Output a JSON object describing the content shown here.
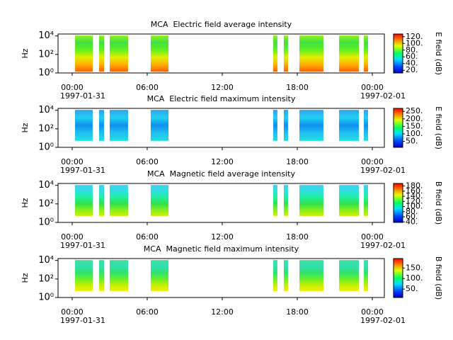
{
  "chart_data": [
    {
      "type": "spectrogram",
      "title": "MCA  Electric field average intensity",
      "ylabel": "Hz",
      "colorbar_label": "E field (dB)",
      "xlim": [
        -1.13,
        24.96
      ],
      "ylim": [
        1,
        16000
      ],
      "log_y": true,
      "xticks": [
        {
          "value": 0,
          "label": "00:00"
        },
        {
          "value": 6,
          "label": "06:00"
        },
        {
          "value": 12,
          "label": "12:00"
        },
        {
          "value": 18,
          "label": "18:00"
        },
        {
          "value": 24,
          "label": "00:00"
        }
      ],
      "xtick_dates": [
        {
          "value": 0,
          "label": "1997-01-31"
        },
        {
          "value": 24,
          "label": "1997-02-01"
        }
      ],
      "yticks": [
        {
          "value": 1,
          "label": "10⁰"
        },
        {
          "value": 100,
          "label": "10²"
        },
        {
          "value": 10000,
          "label": "10⁴"
        }
      ],
      "intervals": [
        [
          0.23,
          1.64
        ],
        [
          2.15,
          2.55
        ],
        [
          3.0,
          4.47
        ],
        [
          6.28,
          7.7
        ],
        [
          16.07,
          16.41
        ],
        [
          16.92,
          17.26
        ],
        [
          18.17,
          20.09
        ],
        [
          21.34,
          22.92
        ],
        [
          23.32,
          23.66
        ]
      ],
      "frequency_range": [
        1.4,
        11000
      ],
      "gradient": [
        "#ff6000",
        "#ffb000",
        "#e0f000",
        "#60f020",
        "#40e040",
        "#90f020"
      ],
      "clim": [
        12,
        128
      ],
      "cticks": [
        {
          "value": 20,
          "label": "20."
        },
        {
          "value": 40,
          "label": "40."
        },
        {
          "value": 60,
          "label": "60."
        },
        {
          "value": 80,
          "label": "80."
        },
        {
          "value": 100,
          "label": "100."
        },
        {
          "value": 120,
          "label": "120."
        }
      ]
    },
    {
      "type": "spectrogram",
      "title": "MCA  Electric field maximum intensity",
      "ylabel": "Hz",
      "colorbar_label": "E field (dB)",
      "xlim": [
        -1.13,
        24.96
      ],
      "ylim": [
        1,
        16000
      ],
      "log_y": true,
      "xticks": [
        {
          "value": 0,
          "label": "00:00"
        },
        {
          "value": 6,
          "label": "06:00"
        },
        {
          "value": 12,
          "label": "12:00"
        },
        {
          "value": 18,
          "label": "18:00"
        },
        {
          "value": 24,
          "label": "00:00"
        }
      ],
      "xtick_dates": [
        {
          "value": 0,
          "label": "1997-01-31"
        },
        {
          "value": 24,
          "label": "1997-02-01"
        }
      ],
      "yticks": [
        {
          "value": 1,
          "label": "10⁰"
        },
        {
          "value": 100,
          "label": "10²"
        },
        {
          "value": 10000,
          "label": "10⁴"
        }
      ],
      "intervals": [
        [
          0.23,
          1.64
        ],
        [
          2.15,
          2.55
        ],
        [
          3.0,
          4.47
        ],
        [
          6.28,
          7.7
        ],
        [
          16.07,
          16.41
        ],
        [
          16.92,
          17.26
        ],
        [
          18.17,
          20.09
        ],
        [
          21.34,
          22.92
        ],
        [
          23.32,
          23.66
        ]
      ],
      "frequency_range": [
        5,
        11000
      ],
      "gradient": [
        "#20e0e0",
        "#20c0f0",
        "#1090f0",
        "#20d0f0",
        "#30a0f0"
      ],
      "clim": [
        10,
        270
      ],
      "cticks": [
        {
          "value": 50,
          "label": "50."
        },
        {
          "value": 100,
          "label": "100."
        },
        {
          "value": 150,
          "label": "150."
        },
        {
          "value": 200,
          "label": "200."
        },
        {
          "value": 250,
          "label": "250."
        }
      ]
    },
    {
      "type": "spectrogram",
      "title": "MCA  Magnetic field average intensity",
      "ylabel": "Hz",
      "colorbar_label": "B field (dB)",
      "xlim": [
        -1.13,
        24.96
      ],
      "ylim": [
        1,
        16000
      ],
      "log_y": true,
      "xticks": [
        {
          "value": 0,
          "label": "00:00"
        },
        {
          "value": 6,
          "label": "06:00"
        },
        {
          "value": 12,
          "label": "12:00"
        },
        {
          "value": 18,
          "label": "18:00"
        },
        {
          "value": 24,
          "label": "00:00"
        }
      ],
      "xtick_dates": [
        {
          "value": 0,
          "label": "1997-01-31"
        },
        {
          "value": 24,
          "label": "1997-02-01"
        }
      ],
      "yticks": [
        {
          "value": 1,
          "label": "10⁰"
        },
        {
          "value": 100,
          "label": "10²"
        },
        {
          "value": 10000,
          "label": "10⁴"
        }
      ],
      "intervals": [
        [
          0.23,
          1.64
        ],
        [
          2.15,
          2.55
        ],
        [
          3.0,
          4.47
        ],
        [
          6.28,
          7.7
        ],
        [
          16.07,
          16.41
        ],
        [
          16.92,
          17.26
        ],
        [
          18.17,
          20.09
        ],
        [
          21.34,
          22.92
        ],
        [
          23.32,
          23.66
        ]
      ],
      "frequency_range": [
        5,
        11000
      ],
      "gradient": [
        "#d0f000",
        "#80f020",
        "#30e050",
        "#20f0a0",
        "#30e0e0",
        "#40d0f0"
      ],
      "clim": [
        38,
        190
      ],
      "cticks": [
        {
          "value": 40,
          "label": "40."
        },
        {
          "value": 60,
          "label": "60."
        },
        {
          "value": 80,
          "label": "80."
        },
        {
          "value": 100,
          "label": "100."
        },
        {
          "value": 120,
          "label": "120."
        },
        {
          "value": 140,
          "label": "140."
        },
        {
          "value": 160,
          "label": "160."
        },
        {
          "value": 180,
          "label": "180."
        }
      ]
    },
    {
      "type": "spectrogram",
      "title": "MCA  Magnetic field maximum intensity",
      "ylabel": "Hz",
      "colorbar_label": "B field (dB)",
      "xlim": [
        -1.13,
        24.96
      ],
      "ylim": [
        1,
        16000
      ],
      "log_y": true,
      "xticks": [
        {
          "value": 0,
          "label": "00:00"
        },
        {
          "value": 6,
          "label": "06:00"
        },
        {
          "value": 12,
          "label": "12:00"
        },
        {
          "value": 18,
          "label": "18:00"
        },
        {
          "value": 24,
          "label": "00:00"
        }
      ],
      "xtick_dates": [
        {
          "value": 0,
          "label": "1997-01-31"
        },
        {
          "value": 24,
          "label": "1997-02-01"
        }
      ],
      "yticks": [
        {
          "value": 1,
          "label": "10⁰"
        },
        {
          "value": 100,
          "label": "10²"
        },
        {
          "value": 10000,
          "label": "10⁴"
        }
      ],
      "intervals": [
        [
          0.23,
          1.64
        ],
        [
          2.15,
          2.55
        ],
        [
          3.0,
          4.47
        ],
        [
          6.28,
          7.7
        ],
        [
          16.07,
          16.41
        ],
        [
          16.92,
          17.26
        ],
        [
          18.17,
          20.09
        ],
        [
          21.34,
          22.92
        ],
        [
          23.32,
          23.66
        ]
      ],
      "frequency_range": [
        5,
        11000
      ],
      "gradient": [
        "#f0f000",
        "#c0f000",
        "#60f030",
        "#30e070",
        "#30e0b0",
        "#40e0a0"
      ],
      "clim": [
        10,
        195
      ],
      "cticks": [
        {
          "value": 50,
          "label": "50."
        },
        {
          "value": 100,
          "label": "100."
        },
        {
          "value": 150,
          "label": "150."
        }
      ]
    }
  ]
}
